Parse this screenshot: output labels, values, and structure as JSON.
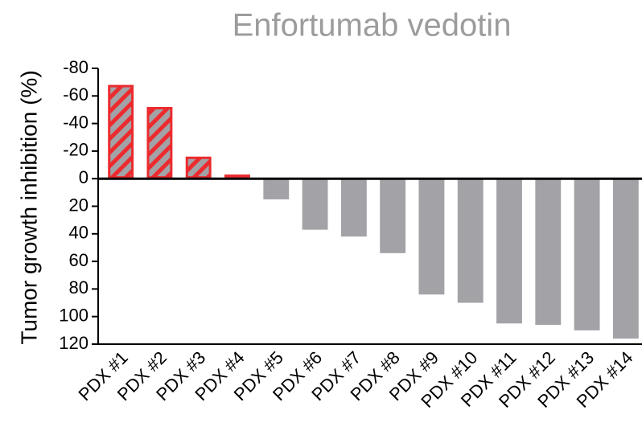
{
  "chart_data": {
    "type": "bar",
    "title": "Enfortumab vedotin",
    "y_label": "Tumor growth inhibition (%)",
    "categories": [
      "PDX #1",
      "PDX #2",
      "PDX #3",
      "PDX #4",
      "PDX #5",
      "PDX #6",
      "PDX #7",
      "PDX #8",
      "PDX #9",
      "PDX #10",
      "PDX #11",
      "PDX #12",
      "PDX #13",
      "PDX #14"
    ],
    "values": [
      -68,
      -52,
      -16,
      -3,
      15,
      37,
      42,
      54,
      84,
      90,
      105,
      106,
      110,
      116
    ],
    "color": "#a3a2a7",
    "negative_color": "#ec2b2e",
    "title_color": "#9c9c9c",
    "ylim": [
      -80,
      120
    ],
    "yticks": [
      -80,
      -60,
      -40,
      -20,
      0,
      20,
      40,
      60,
      80,
      100,
      120
    ],
    "y_inverted": true,
    "grid": false
  }
}
